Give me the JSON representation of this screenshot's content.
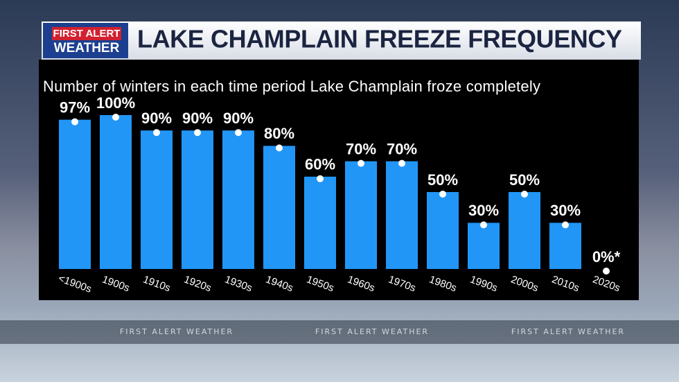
{
  "logo": {
    "line1": "FIRST ALERT",
    "line2": "WEATHER"
  },
  "ticker": [
    "FIRST ALERT WEATHER",
    "FIRST ALERT WEATHER",
    "FIRST ALERT WEATHER"
  ],
  "chart_data": {
    "type": "bar",
    "title": "LAKE CHAMPLAIN FREEZE FREQUENCY",
    "subtitle": "Number of winters in each time period Lake Champlain froze completely",
    "categories": [
      "<1900s",
      "1900s",
      "1910s",
      "1920s",
      "1930s",
      "1940s",
      "1950s",
      "1960s",
      "1970s",
      "1980s",
      "1990s",
      "2000s",
      "2010s",
      "2020s"
    ],
    "values": [
      97,
      100,
      90,
      90,
      90,
      80,
      60,
      70,
      70,
      50,
      30,
      50,
      30,
      0
    ],
    "value_labels": [
      "97%",
      "100%",
      "90%",
      "90%",
      "90%",
      "80%",
      "60%",
      "70%",
      "70%",
      "50%",
      "30%",
      "50%",
      "30%",
      "0%*"
    ],
    "color": "#2196f7"
  }
}
